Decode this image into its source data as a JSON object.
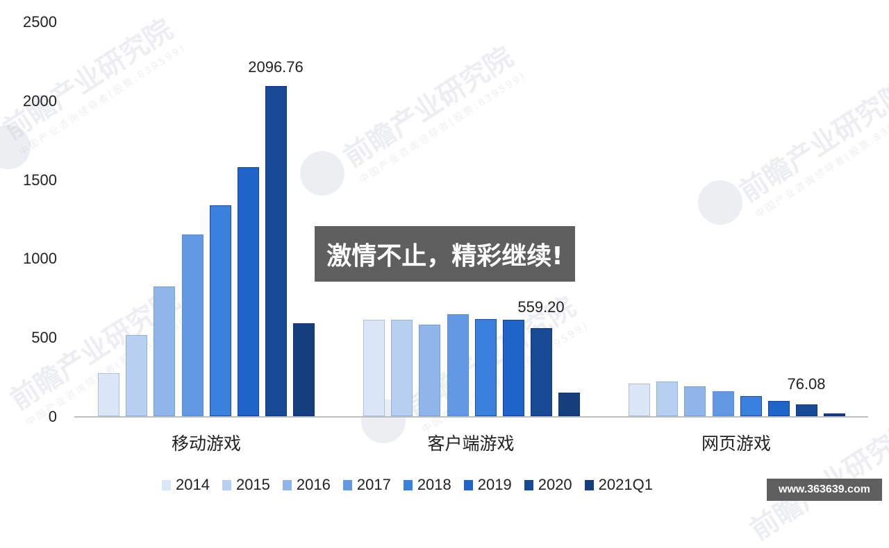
{
  "chart_data": {
    "type": "bar",
    "title": "",
    "xlabel": "",
    "ylabel": "",
    "ylim": [
      0,
      2500
    ],
    "yticks": [
      0,
      500,
      1000,
      1500,
      2000,
      2500
    ],
    "grid": false,
    "legend_position": "bottom",
    "categories": [
      "移动游戏",
      "客户端游戏",
      "网页游戏"
    ],
    "series": [
      {
        "name": "2014",
        "color": "#dbe7f7",
        "values": [
          273,
          612,
          207
        ]
      },
      {
        "name": "2015",
        "color": "#b7d0f1",
        "values": [
          515,
          612,
          220
        ]
      },
      {
        "name": "2016",
        "color": "#8fb5ea",
        "values": [
          823,
          581,
          189
        ]
      },
      {
        "name": "2017",
        "color": "#6399e2",
        "values": [
          1153,
          647,
          158
        ]
      },
      {
        "name": "2018",
        "color": "#3a80dd",
        "values": [
          1338,
          616,
          128
        ]
      },
      {
        "name": "2019",
        "color": "#1f64c8",
        "values": [
          1580,
          612,
          97
        ]
      },
      {
        "name": "2020",
        "color": "#174a94",
        "values": [
          2096.76,
          559.2,
          76.08
        ]
      },
      {
        "name": "2021Q1",
        "color": "#153e7c",
        "values": [
          590,
          150,
          18
        ]
      }
    ],
    "annotations": [
      {
        "category": "移动游戏",
        "series": "2020",
        "text": "2096.76"
      },
      {
        "category": "客户端游戏",
        "series": "2020",
        "text": "559.20"
      },
      {
        "category": "网页游戏",
        "series": "2020",
        "text": "76.08"
      }
    ]
  },
  "axis": {
    "yticks": [
      "2500",
      "2000",
      "1500",
      "1000",
      "500",
      "0"
    ]
  },
  "categories": [
    "移动游戏",
    "客户端游戏",
    "网页游戏"
  ],
  "legend": [
    "2014",
    "2015",
    "2016",
    "2017",
    "2018",
    "2019",
    "2020",
    "2021Q1"
  ],
  "annotations": [
    "2096.76",
    "559.20",
    "76.08"
  ],
  "watermark": {
    "title": "前瞻产业研究院",
    "subtitle": "中国产业咨询领导者(股票:839599)"
  },
  "overlay": {
    "banner": "激情不止，精彩继续!",
    "site": "www.363639.com"
  }
}
